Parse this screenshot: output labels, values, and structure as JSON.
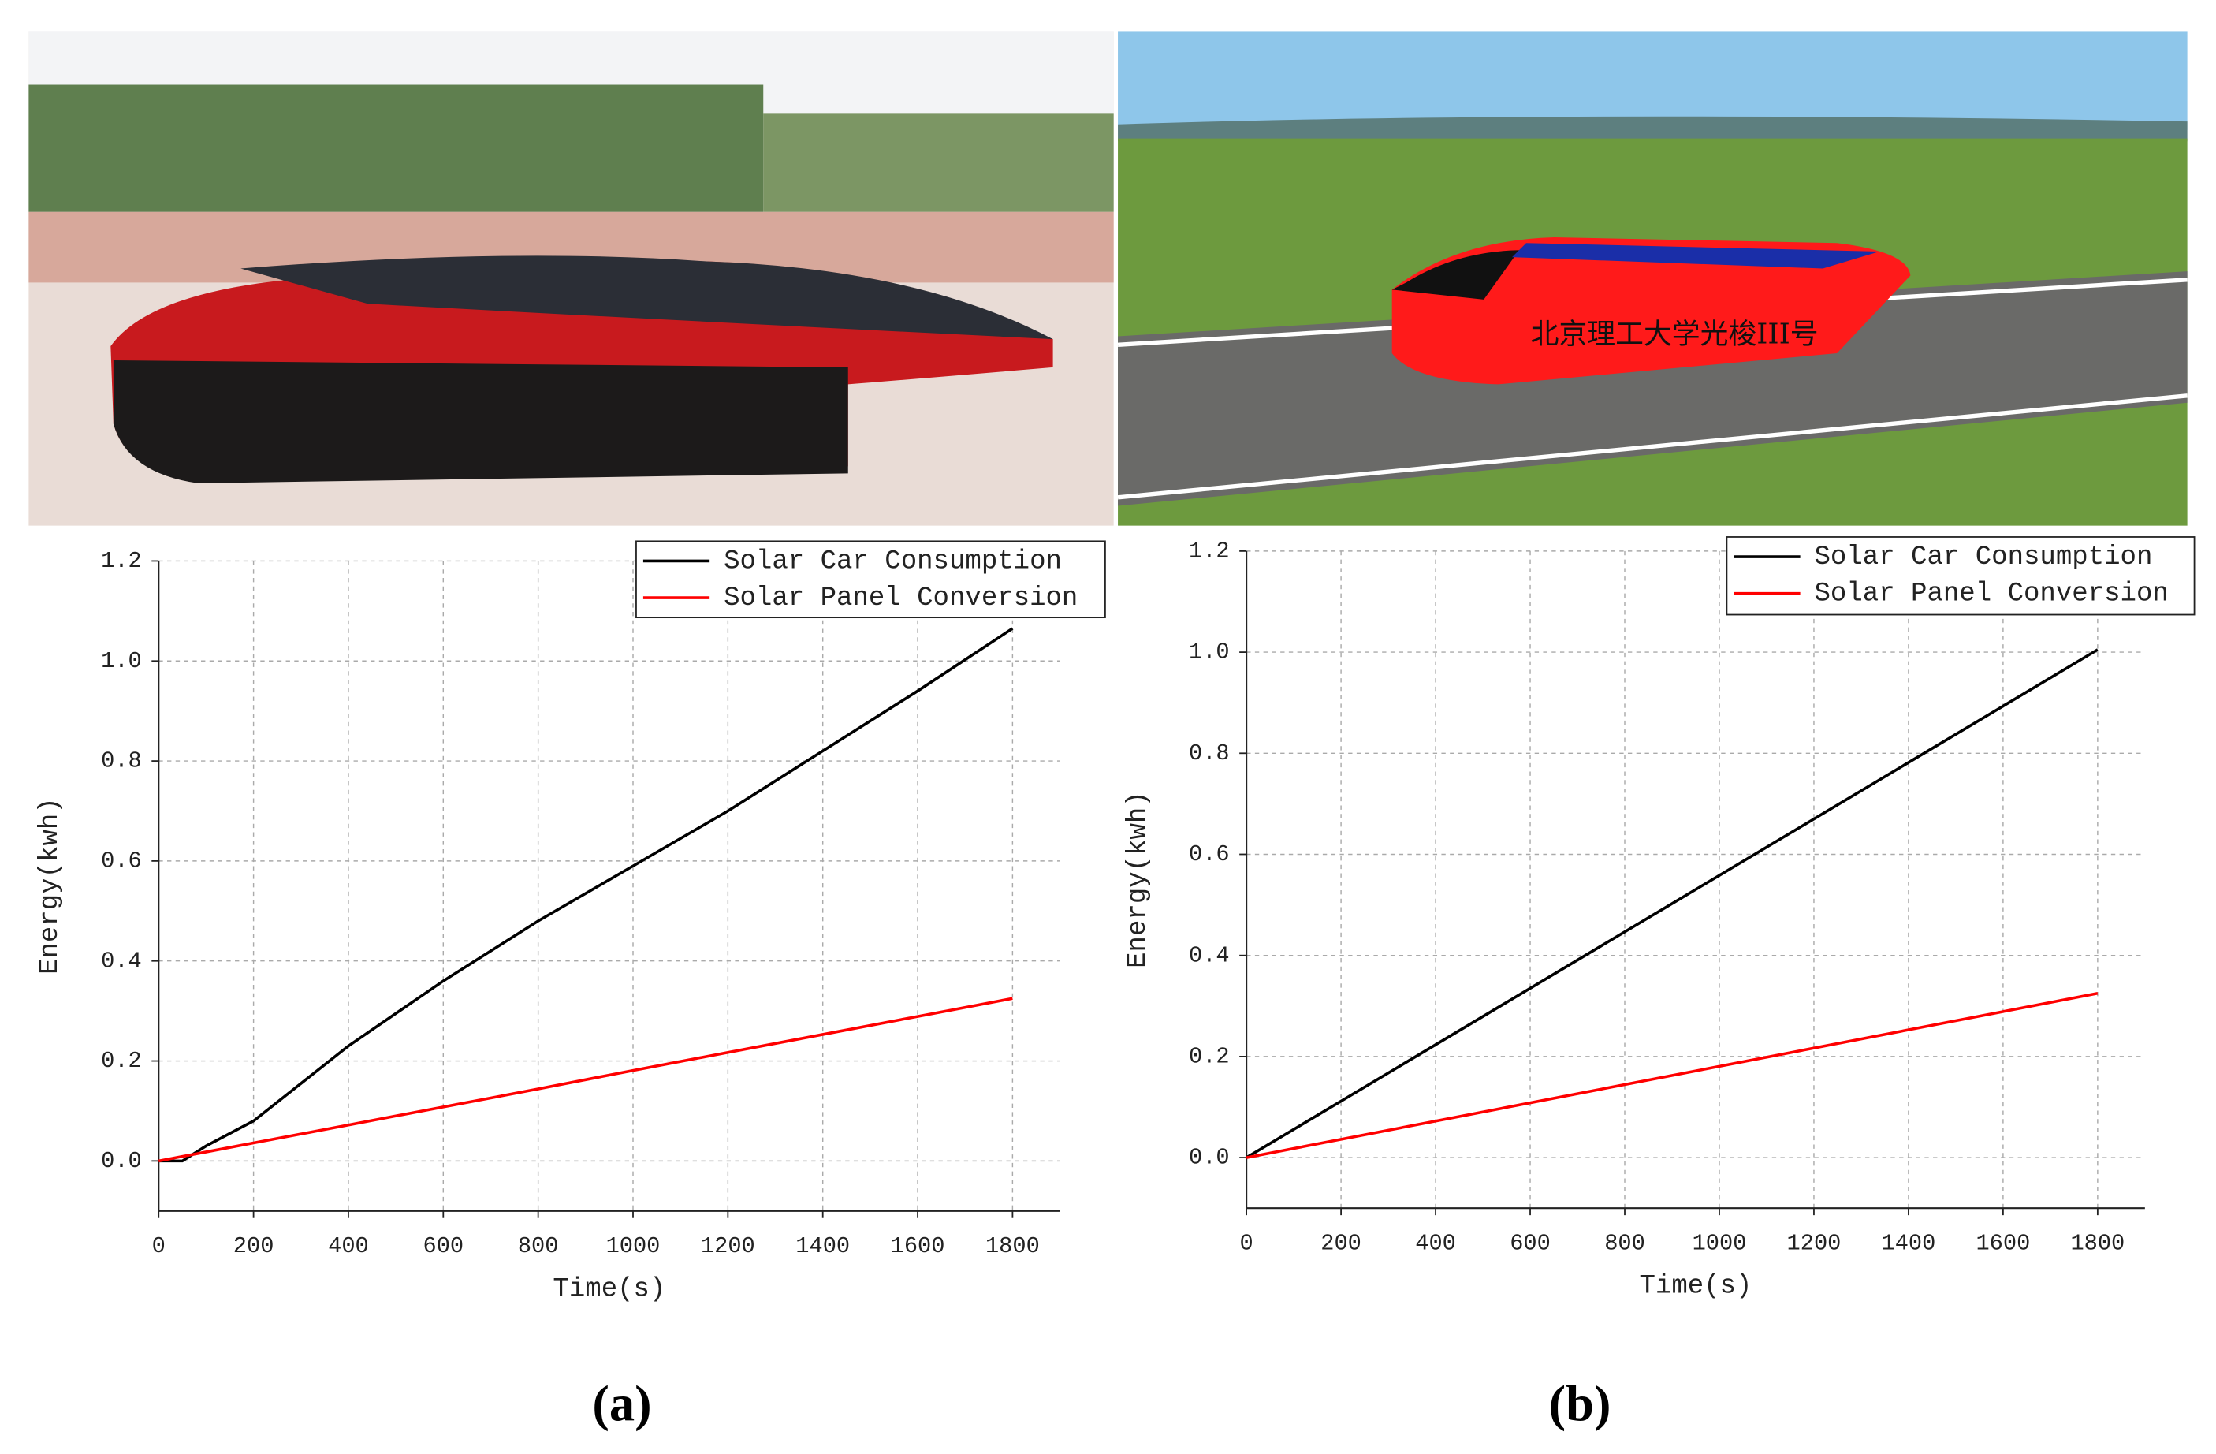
{
  "chart_data": [
    {
      "type": "line",
      "panel_label": "(a)",
      "x_label": "Time(s)",
      "y_label": "Energy(kwh)",
      "x": [
        0,
        50,
        100,
        200,
        400,
        600,
        800,
        1000,
        1200,
        1400,
        1600,
        1800
      ],
      "series": [
        {
          "name": "Solar Car Consumption",
          "color": "#000000",
          "values": [
            0,
            0,
            0.03,
            0.08,
            0.23,
            0.36,
            0.48,
            0.59,
            0.7,
            0.82,
            0.94,
            1.065
          ]
        },
        {
          "name": "Solar Panel Conversion",
          "color": "#ff0000",
          "values": [
            0,
            0.009,
            0.018,
            0.036,
            0.072,
            0.108,
            0.144,
            0.181,
            0.217,
            0.253,
            0.289,
            0.325
          ]
        }
      ],
      "xlim": [
        0,
        1900
      ],
      "xticks": [
        0,
        200,
        400,
        600,
        800,
        1000,
        1200,
        1400,
        1600,
        1800
      ],
      "ylim": [
        -0.1,
        1.2
      ],
      "yticks": [
        {
          "value": 0,
          "label": "0.0"
        },
        0.2,
        0.4,
        0.6,
        0.8,
        {
          "value": 1,
          "label": "1.0"
        },
        1.2
      ],
      "grid": true,
      "legend": "top-right"
    },
    {
      "type": "line",
      "panel_label": "(b)",
      "x_label": "Time(s)",
      "y_label": "Energy(kwh)",
      "x": [
        0,
        1800
      ],
      "series": [
        {
          "name": "Solar Car Consumption",
          "color": "#000000",
          "values": [
            0,
            1.005
          ]
        },
        {
          "name": "Solar Panel Conversion",
          "color": "#ff0000",
          "values": [
            0,
            0.325
          ]
        }
      ],
      "xlim": [
        0,
        1900
      ],
      "xticks": [
        0,
        200,
        400,
        600,
        800,
        1000,
        1200,
        1400,
        1600,
        1800
      ],
      "ylim": [
        -0.1,
        1.2
      ],
      "yticks": [
        {
          "value": 0,
          "label": "0.0"
        },
        0.2,
        0.4,
        0.6,
        0.8,
        {
          "value": 1,
          "label": "1.0"
        },
        1.2
      ],
      "grid": true,
      "legend": "top-right"
    }
  ],
  "scene_text": "北京理工大学光梭III号"
}
